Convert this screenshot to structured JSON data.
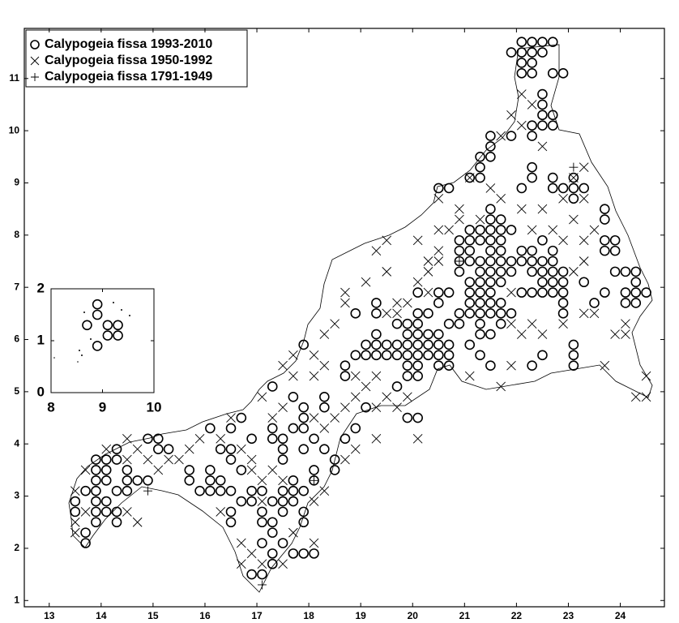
{
  "chart_data": [
    {
      "type": "scatter",
      "legend": "upper left",
      "color": "#000000",
      "xlim": [
        12.52,
        24.85
      ],
      "ylim": [
        0.88,
        11.96
      ],
      "xticks": [
        13,
        14,
        15,
        16,
        17,
        18,
        19,
        20,
        21,
        22,
        23,
        24
      ],
      "yticks": [
        1,
        2,
        3,
        4,
        5,
        6,
        7,
        8,
        9,
        10,
        11
      ],
      "series": [
        {
          "name": "Calypogeia fissa 1993-2010",
          "marker": "o",
          "x": [
            22.1,
            22.3,
            22.5,
            22.7,
            21.9,
            22.1,
            22.3,
            22.5,
            22.1,
            22.3,
            22.1,
            22.3,
            22.7,
            22.9,
            22.5,
            22.5,
            22.5,
            22.7,
            22.3,
            22.5,
            22.7,
            21.9,
            22.3,
            21.5,
            21.5,
            21.5,
            21.3,
            21.3,
            21.1,
            21.3,
            22.3,
            22.3,
            22.1,
            22.7,
            22.7,
            22.9,
            23.1,
            23.1,
            23.3,
            23.1,
            20.5,
            20.7,
            23.7,
            23.7,
            21.5,
            21.5,
            21.7,
            21.3,
            21.5,
            21.1,
            21.7,
            21.9,
            21.1,
            21.3,
            21.5,
            21.7,
            20.9,
            20.9,
            21.1,
            21.5,
            21.7,
            22.1,
            22.3,
            22.5,
            22.7,
            23.7,
            23.9,
            23.7,
            23.9,
            21.9,
            22.1,
            22.3,
            22.5,
            20.9,
            21.1,
            21.3,
            21.5,
            21.7,
            22.7,
            20.9,
            21.3,
            21.5,
            21.7,
            21.9,
            22.3,
            22.5,
            22.7,
            22.9,
            23.9,
            24.1,
            24.3,
            21.1,
            21.3,
            21.5,
            21.7,
            22.5,
            22.7,
            22.9,
            23.3,
            24.1,
            24.3,
            24.5,
            24.3,
            21.1,
            21.3,
            21.5,
            22.1,
            22.3,
            22.5,
            22.7,
            22.9,
            23.7,
            20.5,
            20.7,
            20.1,
            21.1,
            21.3,
            21.5,
            21.7,
            22.9,
            24.1,
            24.3,
            23.5,
            20.5,
            19.3,
            21.1,
            21.3,
            21.5,
            21.7,
            21.9,
            22.9,
            20.1,
            20.3,
            20.9,
            18.9,
            19.3,
            20.1,
            20.7,
            20.9,
            21.3,
            21.7,
            19.3,
            19.7,
            19.9,
            20.5,
            20.3,
            19.9,
            20.1,
            21.3,
            21.5,
            19.1,
            19.3,
            19.5,
            19.7,
            19.9,
            20.1,
            20.3,
            20.5,
            20.7,
            21.1,
            23.1,
            17.9,
            18.9,
            19.1,
            19.3,
            19.5,
            19.7,
            19.9,
            20.1,
            20.3,
            20.5,
            20.7,
            21.3,
            22.5,
            23.1,
            19.9,
            20.1,
            20.5,
            20.7,
            21.5,
            22.3,
            23.1,
            18.7,
            19.9,
            20.1,
            18.7,
            17.3,
            19.7,
            17.7,
            18.3,
            17.9,
            18.3,
            19.1,
            20.1,
            19.9,
            17.9,
            16.7,
            16.1,
            16.5,
            17.3,
            17.7,
            17.9,
            18.9,
            15.1,
            14.9,
            16.9,
            17.3,
            17.5,
            18.1,
            18.7,
            15.1,
            15.3,
            16.3,
            16.5,
            14.3,
            17.5,
            17.9,
            18.3,
            13.9,
            14.1,
            14.3,
            16.5,
            17.5,
            18.5,
            13.9,
            14.1,
            14.5,
            15.7,
            16.1,
            16.7,
            18.5,
            18.1,
            13.9,
            14.1,
            14.5,
            14.7,
            14.9,
            15.7,
            16.1,
            16.3,
            17.7,
            18.1,
            13.7,
            13.9,
            14.3,
            14.5,
            15.9,
            16.1,
            16.3,
            16.5,
            16.9,
            17.1,
            17.5,
            17.7,
            17.9,
            13.5,
            13.9,
            14.1,
            16.7,
            16.9,
            17.3,
            17.5,
            17.7,
            13.5,
            13.9,
            14.1,
            14.3,
            16.5,
            17.1,
            17.5,
            17.9,
            13.9,
            14.3,
            16.5,
            17.1,
            17.3,
            17.9,
            13.7,
            17.3,
            13.7,
            17.1,
            17.5,
            17.3,
            17.7,
            17.9,
            18.1,
            17.3,
            16.9,
            17.1
          ],
          "y": [
            11.7,
            11.7,
            11.7,
            11.7,
            11.5,
            11.5,
            11.5,
            11.5,
            11.3,
            11.3,
            11.1,
            11.1,
            11.1,
            11.1,
            10.7,
            10.5,
            10.3,
            10.3,
            10.1,
            10.1,
            10.1,
            9.9,
            9.9,
            9.9,
            9.7,
            9.5,
            9.5,
            9.3,
            9.1,
            9.1,
            9.3,
            9.1,
            8.9,
            9.1,
            8.9,
            8.9,
            8.9,
            9.1,
            8.9,
            8.7,
            8.9,
            8.9,
            8.5,
            8.3,
            8.5,
            8.3,
            8.3,
            8.1,
            8.1,
            8.1,
            8.1,
            8.1,
            7.9,
            7.9,
            7.9,
            7.9,
            7.9,
            7.7,
            7.7,
            7.7,
            7.7,
            7.7,
            7.7,
            7.9,
            7.7,
            7.9,
            7.9,
            7.7,
            7.7,
            7.5,
            7.5,
            7.5,
            7.5,
            7.5,
            7.5,
            7.5,
            7.5,
            7.5,
            7.5,
            7.3,
            7.3,
            7.3,
            7.3,
            7.3,
            7.3,
            7.3,
            7.3,
            7.3,
            7.3,
            7.3,
            7.3,
            7.1,
            7.1,
            7.1,
            7.1,
            7.1,
            7.1,
            7.1,
            7.1,
            6.9,
            6.9,
            6.9,
            7.1,
            6.9,
            6.9,
            6.9,
            6.9,
            6.9,
            6.9,
            6.9,
            6.9,
            6.9,
            6.9,
            6.9,
            6.9,
            6.7,
            6.7,
            6.7,
            6.7,
            6.7,
            6.7,
            6.7,
            6.7,
            6.7,
            6.7,
            6.5,
            6.5,
            6.5,
            6.5,
            6.5,
            6.5,
            6.5,
            6.5,
            6.5,
            6.5,
            6.5,
            6.3,
            6.3,
            6.3,
            6.3,
            6.3,
            6.1,
            6.3,
            6.3,
            6.1,
            6.1,
            6.1,
            6.1,
            6.1,
            6.1,
            5.9,
            5.9,
            5.9,
            5.9,
            5.9,
            5.9,
            5.9,
            5.9,
            5.9,
            5.9,
            5.9,
            5.9,
            5.7,
            5.7,
            5.7,
            5.7,
            5.7,
            5.7,
            5.7,
            5.7,
            5.7,
            5.7,
            5.7,
            5.7,
            5.7,
            5.5,
            5.5,
            5.5,
            5.5,
            5.5,
            5.5,
            5.5,
            5.5,
            5.3,
            5.3,
            5.3,
            5.1,
            5.1,
            4.9,
            4.9,
            4.7,
            4.7,
            4.7,
            4.5,
            4.5,
            4.5,
            4.5,
            4.3,
            4.3,
            4.3,
            4.3,
            4.3,
            4.3,
            4.1,
            4.1,
            4.1,
            4.1,
            4.1,
            4.1,
            4.1,
            3.9,
            3.9,
            3.9,
            3.9,
            3.9,
            3.9,
            3.9,
            3.9,
            3.7,
            3.7,
            3.7,
            3.7,
            3.7,
            3.7,
            3.5,
            3.5,
            3.5,
            3.5,
            3.5,
            3.5,
            3.5,
            3.5,
            3.3,
            3.3,
            3.3,
            3.3,
            3.3,
            3.3,
            3.3,
            3.3,
            3.3,
            3.3,
            3.1,
            3.1,
            3.1,
            3.1,
            3.1,
            3.1,
            3.1,
            3.1,
            3.1,
            3.1,
            3.1,
            3.1,
            3.1,
            2.9,
            2.9,
            2.9,
            2.9,
            2.9,
            2.9,
            2.9,
            2.9,
            2.7,
            2.7,
            2.7,
            2.7,
            2.7,
            2.7,
            2.7,
            2.7,
            2.5,
            2.5,
            2.5,
            2.5,
            2.5,
            2.5,
            2.3,
            2.3,
            2.1,
            2.1,
            2.1,
            1.9,
            1.9,
            1.9,
            1.9,
            1.7,
            1.5,
            1.5
          ]
        },
        {
          "name": "Calypogeia fissa 1950-1992",
          "marker": "x",
          "x": [
            22.1,
            22.3,
            21.9,
            21.7,
            22.1,
            22.5,
            23.3,
            23.1,
            23.3,
            22.9,
            22.5,
            22.1,
            21.1,
            21.7,
            21.5,
            21.3,
            20.9,
            20.5,
            20.7,
            20.5,
            20.5,
            20.3,
            20.5,
            20.1,
            20.3,
            19.9,
            19.7,
            19.5,
            19.7,
            19.1,
            18.7,
            18.7,
            18.5,
            18.3,
            18.1,
            17.7,
            17.5,
            17.7,
            18.1,
            18.3,
            18.9,
            19.1,
            19.3,
            19.5,
            19.7,
            19.9,
            19.3,
            18.9,
            18.7,
            18.5,
            18.3,
            18.1,
            17.5,
            17.3,
            17.1,
            16.5,
            16.3,
            15.9,
            15.7,
            15.5,
            15.3,
            16.7,
            16.9,
            16.9,
            17.1,
            17.3,
            17.5,
            15.1,
            14.9,
            14.7,
            14.5,
            14.5,
            14.1,
            13.7,
            13.5,
            13.5,
            13.5,
            13.7,
            14.7,
            14.5,
            16.3,
            17.1,
            16.7,
            16.9,
            16.7,
            17.1,
            17.5,
            17.7,
            18.1,
            18.1,
            18.3,
            18.7,
            18.9,
            19.3,
            20.1,
            21.1,
            21.7,
            21.9,
            22.5,
            21.9,
            22.3,
            22.1,
            22.9,
            23.3,
            23.5,
            23.7,
            24.1,
            24.5,
            24.3,
            24.5,
            23.9,
            24.1,
            23.5,
            23.3,
            23.1,
            23.3,
            23.1,
            22.7,
            22.3,
            22.9,
            20.9,
            21.9,
            20.1,
            20.3,
            19.5,
            19.3,
            19.5
          ],
          "y": [
            10.7,
            10.5,
            10.3,
            9.9,
            10.1,
            9.7,
            9.3,
            9.1,
            8.7,
            8.7,
            8.5,
            8.5,
            9.1,
            8.7,
            8.9,
            8.3,
            8.5,
            8.7,
            8.1,
            8.1,
            7.7,
            7.3,
            7.5,
            7.1,
            6.9,
            6.7,
            6.7,
            6.5,
            6.5,
            7.1,
            6.9,
            6.7,
            6.3,
            6.1,
            5.7,
            5.7,
            5.5,
            5.3,
            5.3,
            5.5,
            5.3,
            5.1,
            5.3,
            4.9,
            4.7,
            4.9,
            4.7,
            4.9,
            4.7,
            4.5,
            4.3,
            4.5,
            4.7,
            4.5,
            4.9,
            4.5,
            4.1,
            4.1,
            3.9,
            3.7,
            3.7,
            3.9,
            3.7,
            3.5,
            3.3,
            3.5,
            3.3,
            3.5,
            3.7,
            3.9,
            4.1,
            3.7,
            3.9,
            3.5,
            3.1,
            2.5,
            2.3,
            2.7,
            2.5,
            2.7,
            2.7,
            2.9,
            2.1,
            1.9,
            1.7,
            1.7,
            1.7,
            2.3,
            2.1,
            2.9,
            3.1,
            3.7,
            3.9,
            4.1,
            4.1,
            5.3,
            5.1,
            5.5,
            6.1,
            6.3,
            6.3,
            6.1,
            6.3,
            6.5,
            6.5,
            5.5,
            6.3,
            5.3,
            4.9,
            4.9,
            6.1,
            6.1,
            8.1,
            7.9,
            7.3,
            7.5,
            8.3,
            8.1,
            8.1,
            7.9,
            8.3,
            6.9,
            7.9,
            7.5,
            7.9,
            7.7,
            7.3
          ]
        },
        {
          "name": "Calypogeia fissa 1791-1949",
          "marker": "+",
          "x": [
            20.9,
            18.1,
            17.1,
            14.9,
            23.1
          ],
          "y": [
            7.5,
            3.3,
            1.3,
            3.1,
            9.3
          ]
        }
      ]
    },
    {
      "type": "scatter",
      "marker": "o",
      "color": "#000000",
      "xlim": [
        8,
        10
      ],
      "ylim": [
        0,
        2
      ],
      "xticks": [
        8,
        9,
        10
      ],
      "yticks": [
        0,
        1,
        2
      ],
      "x": [
        8.9,
        8.7,
        8.9,
        9.1,
        9.3,
        9.1,
        9.3,
        8.9
      ],
      "y": [
        1.7,
        1.3,
        1.5,
        1.3,
        1.3,
        1.1,
        1.1,
        0.9
      ]
    }
  ]
}
